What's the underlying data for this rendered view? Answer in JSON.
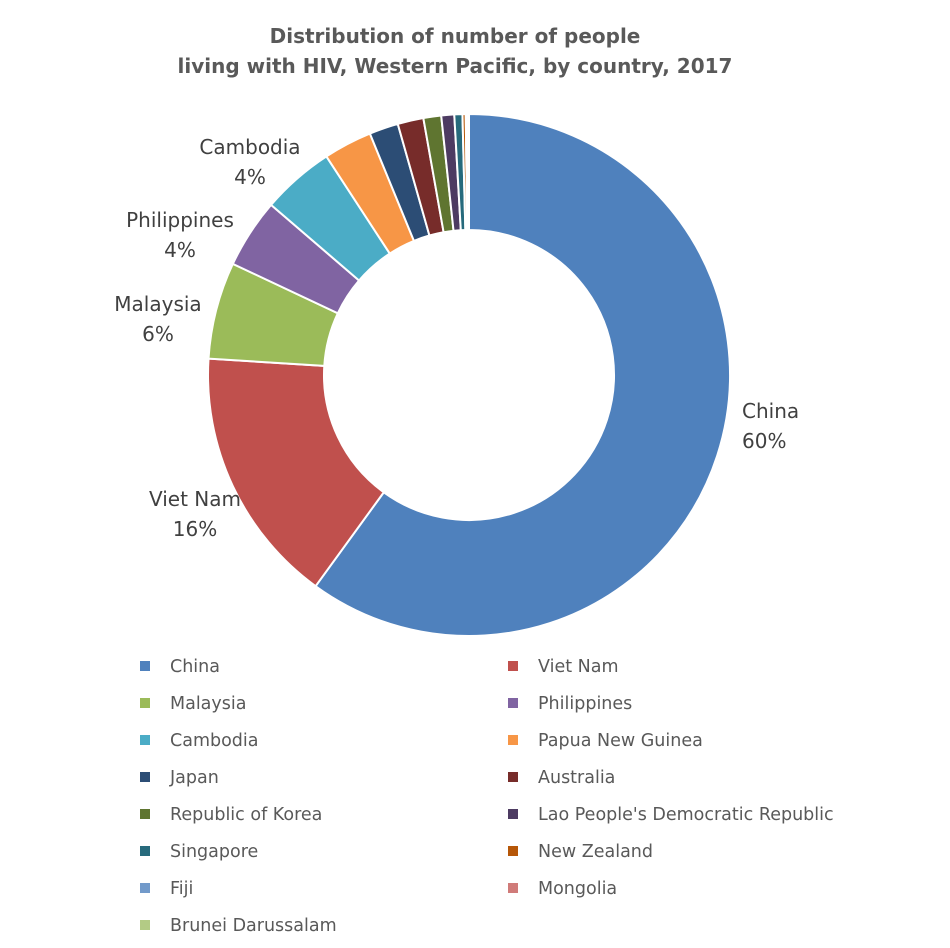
{
  "chart_data": {
    "type": "pie",
    "donut": true,
    "title_lines": [
      "Distribution of number of people",
      "living with HIV, Western Pacific, by country, 2017"
    ],
    "legend_position": "bottom",
    "slices": [
      {
        "label": "China",
        "value": 60.0,
        "display": "60%",
        "color": "#4f81bd",
        "show_label": true
      },
      {
        "label": "Viet Nam",
        "value": 16.0,
        "display": "16%",
        "color": "#c0504d",
        "show_label": true
      },
      {
        "label": "Malaysia",
        "value": 6.0,
        "display": "6%",
        "color": "#9bbb59",
        "show_label": true
      },
      {
        "label": "Philippines",
        "value": 4.3,
        "display": "4%",
        "color": "#8064a2",
        "show_label": true
      },
      {
        "label": "Cambodia",
        "value": 4.5,
        "display": "4%",
        "color": "#4bacc6",
        "show_label": true
      },
      {
        "label": "Papua New Guinea",
        "value": 3.0,
        "display": "",
        "color": "#f79646",
        "show_label": false
      },
      {
        "label": "Japan",
        "value": 1.8,
        "display": "",
        "color": "#2c4d75",
        "show_label": false
      },
      {
        "label": "Australia",
        "value": 1.6,
        "display": "",
        "color": "#772c2a",
        "show_label": false
      },
      {
        "label": "Republic of Korea",
        "value": 1.1,
        "display": "",
        "color": "#5f7530",
        "show_label": false
      },
      {
        "label": "Lao People's Democratic Republic",
        "value": 0.8,
        "display": "",
        "color": "#4d3b62",
        "show_label": false
      },
      {
        "label": "Singapore",
        "value": 0.5,
        "display": "",
        "color": "#276a7c",
        "show_label": false
      },
      {
        "label": "New Zealand",
        "value": 0.2,
        "display": "",
        "color": "#b65708",
        "show_label": false
      },
      {
        "label": "Fiji",
        "value": 0.1,
        "display": "",
        "color": "#729aca",
        "show_label": false
      },
      {
        "label": "Mongolia",
        "value": 0.05,
        "display": "",
        "color": "#d07b79",
        "show_label": false
      },
      {
        "label": "Brunei Darussalam",
        "value": 0.05,
        "display": "",
        "color": "#b3cb85",
        "show_label": false
      }
    ]
  }
}
